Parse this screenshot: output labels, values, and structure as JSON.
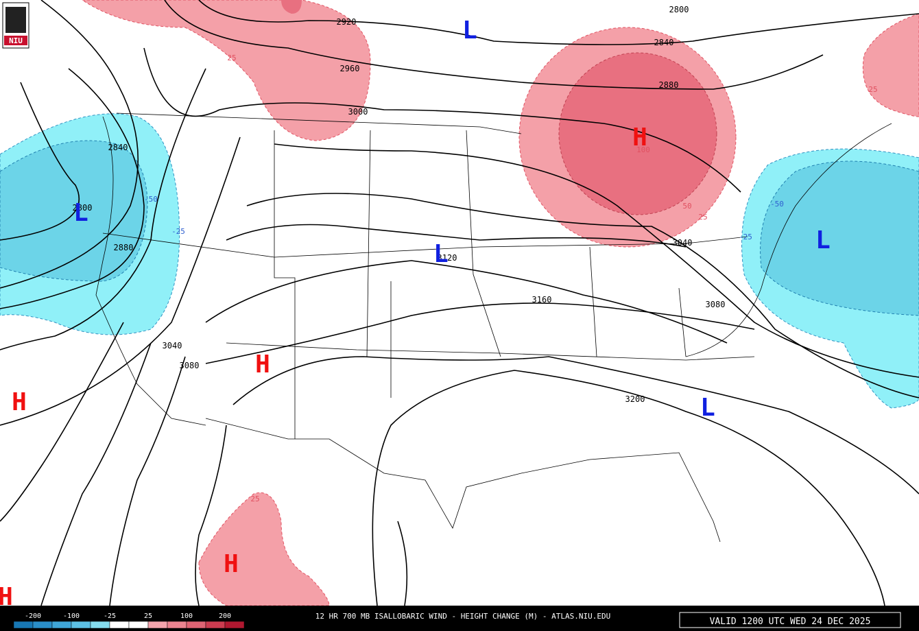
{
  "logo": "NIU",
  "title": "12 HR 700 MB ISALLOBARIC WIND - HEIGHT CHANGE (M) - ATLAS.NIU.EDU",
  "valid": "VALID 1200 UTC WED 24 DEC 2025",
  "legend": {
    "labels": [
      -200,
      -100,
      -25,
      25,
      100,
      200
    ],
    "colors": [
      "#1878b4",
      "#2a8ec8",
      "#3fa6d8",
      "#5cc0e4",
      "#84dcee",
      "#ffffff",
      "#ffffff",
      "#f4a4ac",
      "#ec8490",
      "#e06474",
      "#cc3c50",
      "#b01830"
    ]
  },
  "contour_labels": [
    "2920",
    "2960",
    "3000",
    "2800",
    "2840",
    "2880",
    "2840",
    "2800",
    "2880",
    "3120",
    "3160",
    "3040",
    "3080",
    "3040",
    "3080",
    "3200"
  ],
  "change_labels": [
    {
      "text": "25",
      "color": "#e05060"
    },
    {
      "text": "25",
      "color": "#e05060"
    },
    {
      "text": "100",
      "color": "#e05060"
    },
    {
      "text": "-50",
      "color": "#3060d0"
    },
    {
      "text": "-25",
      "color": "#3060d0"
    },
    {
      "text": "50",
      "color": "#e05060"
    },
    {
      "text": "25",
      "color": "#e05060"
    },
    {
      "text": "-50",
      "color": "#3060d0"
    },
    {
      "text": "-25",
      "color": "#3060d0"
    },
    {
      "text": "25",
      "color": "#e05060"
    }
  ],
  "centers": [
    {
      "label": "L",
      "color": "#1020e0"
    },
    {
      "label": "L",
      "color": "#1020e0"
    },
    {
      "label": "L",
      "color": "#1020e0"
    },
    {
      "label": "H",
      "color": "#f01010"
    },
    {
      "label": "L",
      "color": "#1020e0"
    },
    {
      "label": "H",
      "color": "#f01010"
    },
    {
      "label": "H",
      "color": "#f01010"
    },
    {
      "label": "L",
      "color": "#1020e0"
    },
    {
      "label": "H",
      "color": "#f01010"
    },
    {
      "label": "H",
      "color": "#f01010"
    }
  ]
}
